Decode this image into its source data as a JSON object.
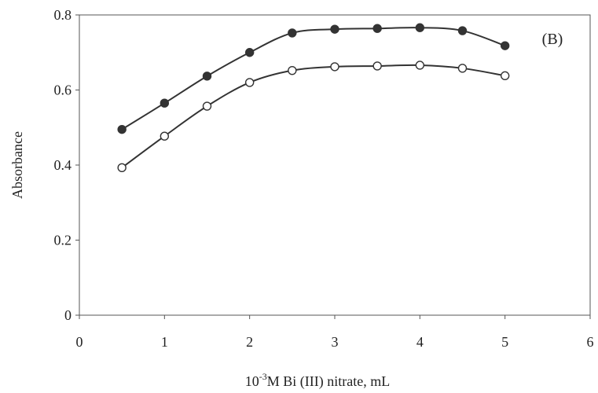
{
  "chart_data": {
    "type": "line",
    "panel_label": "(B)",
    "xlabel": {
      "base": "10",
      "exponent": "-3",
      "rest": "M Bi (III) nitrate, mL"
    },
    "ylabel": "Absorbance",
    "xlim": [
      0,
      6
    ],
    "ylim": [
      0,
      0.8
    ],
    "x_ticks": [
      0,
      1,
      2,
      3,
      4,
      5,
      6
    ],
    "y_ticks": [
      0,
      0.2,
      0.4,
      0.6,
      0.8
    ],
    "x_tick_labels": [
      "0",
      "1",
      "2",
      "3",
      "4",
      "5",
      "6"
    ],
    "y_tick_labels": [
      "0",
      "0.2",
      "0.4",
      "0.6",
      "0.8"
    ],
    "grid": false,
    "x": [
      0.5,
      1.0,
      1.5,
      2.0,
      2.5,
      3.0,
      3.5,
      4.0,
      4.5,
      5.0
    ],
    "series": [
      {
        "marker": "filled-circle",
        "values": [
          0.495,
          0.565,
          0.637,
          0.7,
          0.752,
          0.762,
          0.764,
          0.766,
          0.758,
          0.718
        ]
      },
      {
        "marker": "open-circle",
        "values": [
          0.393,
          0.477,
          0.557,
          0.62,
          0.652,
          0.662,
          0.664,
          0.666,
          0.658,
          0.638
        ]
      }
    ],
    "colors": {
      "line": "#333333",
      "marker_fill_filled": "#333333",
      "marker_fill_open": "#ffffff"
    }
  }
}
